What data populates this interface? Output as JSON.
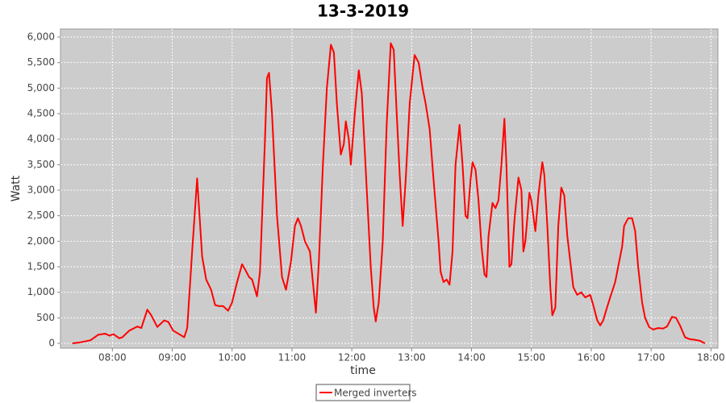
{
  "chart_data": {
    "type": "line",
    "title": "13-3-2019",
    "x_label": "time",
    "y_label": "Watt",
    "x": [
      "07:20",
      "07:28",
      "07:38",
      "07:46",
      "07:53",
      "07:57",
      "08:01",
      "08:07",
      "08:10",
      "08:17",
      "08:25",
      "08:29",
      "08:35",
      "08:39",
      "08:45",
      "08:52",
      "08:56",
      "09:01",
      "09:12",
      "09:15",
      "09:20",
      "09:25",
      "09:30",
      "09:34",
      "09:39",
      "09:43",
      "09:47",
      "09:51",
      "09:56",
      "10:00",
      "10:05",
      "10:10",
      "10:13",
      "10:17",
      "10:20",
      "10:25",
      "10:28",
      "10:33",
      "10:35",
      "10:37",
      "10:40",
      "10:45",
      "10:50",
      "10:54",
      "10:59",
      "11:03",
      "11:06",
      "11:09",
      "11:13",
      "11:18",
      "11:22",
      "11:24",
      "11:27",
      "11:31",
      "11:35",
      "11:39",
      "11:42",
      "11:45",
      "11:49",
      "11:52",
      "11:54",
      "11:57",
      "11:59",
      "12:03",
      "12:07",
      "12:10",
      "12:15",
      "12:19",
      "12:22",
      "12:24",
      "12:27",
      "12:31",
      "12:35",
      "12:39",
      "12:42",
      "12:45",
      "12:48",
      "12:51",
      "12:54",
      "12:58",
      "13:03",
      "13:07",
      "13:11",
      "13:14",
      "13:18",
      "13:22",
      "13:27",
      "13:29",
      "13:32",
      "13:35",
      "13:38",
      "13:41",
      "13:44",
      "13:48",
      "13:51",
      "13:54",
      "13:56",
      "13:59",
      "14:01",
      "14:04",
      "14:07",
      "14:10",
      "14:13",
      "14:15",
      "14:17",
      "14:21",
      "14:24",
      "14:27",
      "14:30",
      "14:33",
      "14:35",
      "14:38",
      "14:40",
      "14:43",
      "14:47",
      "14:50",
      "14:52",
      "14:54",
      "14:58",
      "15:00",
      "15:04",
      "15:07",
      "15:11",
      "15:13",
      "15:16",
      "15:19",
      "15:21",
      "15:24",
      "15:27",
      "15:30",
      "15:33",
      "15:36",
      "15:39",
      "15:42",
      "15:46",
      "15:50",
      "15:54",
      "15:59",
      "16:02",
      "16:06",
      "16:09",
      "16:12",
      "16:15",
      "16:19",
      "16:24",
      "16:27",
      "16:31",
      "16:33",
      "16:37",
      "16:41",
      "16:44",
      "16:47",
      "16:51",
      "16:54",
      "16:58",
      "17:02",
      "17:07",
      "17:12",
      "17:16",
      "17:21",
      "17:25",
      "17:29",
      "17:34",
      "17:39",
      "17:44",
      "17:49",
      "17:54"
    ],
    "series": [
      {
        "name": "Merged inverters",
        "color": "#ff0000",
        "values": [
          0,
          20,
          60,
          170,
          190,
          150,
          180,
          100,
          120,
          250,
          330,
          300,
          660,
          550,
          320,
          450,
          420,
          250,
          120,
          300,
          1800,
          3230,
          1700,
          1250,
          1050,
          750,
          730,
          730,
          640,
          800,
          1200,
          1550,
          1450,
          1300,
          1250,
          920,
          1400,
          4000,
          5200,
          5300,
          4500,
          2500,
          1300,
          1050,
          1600,
          2300,
          2450,
          2300,
          2000,
          1800,
          1000,
          600,
          1600,
          3500,
          5000,
          5850,
          5700,
          4700,
          3700,
          3900,
          4350,
          4000,
          3500,
          4500,
          5350,
          4900,
          3000,
          1500,
          700,
          430,
          800,
          2000,
          4300,
          5880,
          5750,
          4500,
          3300,
          2300,
          3200,
          4700,
          5650,
          5500,
          5000,
          4700,
          4200,
          3200,
          2000,
          1400,
          1200,
          1250,
          1150,
          1800,
          3500,
          4280,
          3500,
          2500,
          2450,
          3200,
          3550,
          3400,
          2800,
          1900,
          1350,
          1300,
          2100,
          2750,
          2650,
          2800,
          3500,
          4400,
          3500,
          1500,
          1550,
          2400,
          3250,
          3000,
          1800,
          2000,
          2950,
          2800,
          2200,
          2900,
          3550,
          3300,
          2300,
          1100,
          550,
          700,
          2300,
          3050,
          2900,
          2100,
          1600,
          1100,
          950,
          1000,
          900,
          950,
          750,
          450,
          350,
          450,
          650,
          900,
          1200,
          1500,
          1900,
          2300,
          2450,
          2450,
          2200,
          1500,
          800,
          500,
          320,
          270,
          300,
          290,
          330,
          520,
          500,
          350,
          120,
          80,
          70,
          50,
          0
        ]
      }
    ],
    "xlim": [
      "07:08",
      "18:07"
    ],
    "xticks": [
      "08:00",
      "09:00",
      "10:00",
      "11:00",
      "12:00",
      "13:00",
      "14:00",
      "15:00",
      "16:00",
      "17:00",
      "18:00"
    ],
    "ylim": [
      -95,
      6158
    ],
    "yticks": [
      0,
      500,
      {
        "value": 1000,
        "label": "1,000"
      },
      {
        "value": 1500,
        "label": "1,500"
      },
      {
        "value": 2000,
        "label": "2,000"
      },
      {
        "value": 2500,
        "label": "2,500"
      },
      {
        "value": 3000,
        "label": "3,000"
      },
      {
        "value": 3500,
        "label": "3,500"
      },
      {
        "value": 4000,
        "label": "4,000"
      },
      {
        "value": 4500,
        "label": "4,500"
      },
      {
        "value": 5000,
        "label": "5,000"
      },
      {
        "value": 5500,
        "label": "5,500"
      },
      {
        "value": 6000,
        "label": "6,000"
      }
    ],
    "grid": true,
    "legend": "bottom",
    "plot_background": "#cccccc"
  }
}
